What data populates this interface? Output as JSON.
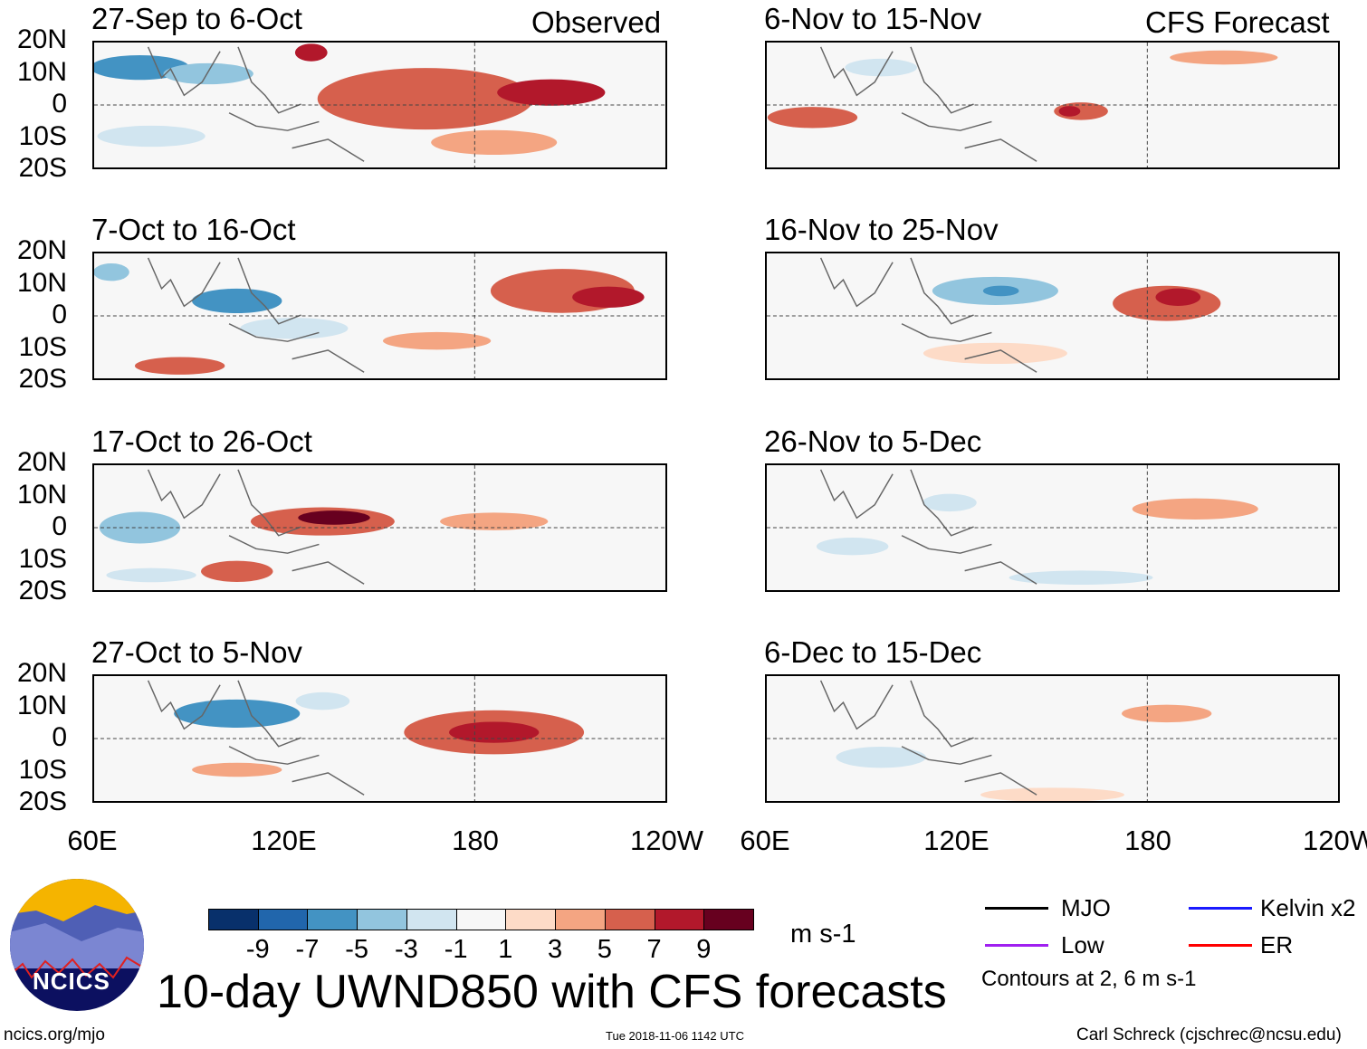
{
  "left_column_label": "Observed",
  "right_column_label": "CFS Forecast",
  "panels": [
    {
      "title": "27-Sep to 6-Oct",
      "source": "Observed"
    },
    {
      "title": "7-Oct to 16-Oct",
      "source": "Observed"
    },
    {
      "title": "17-Oct to 26-Oct",
      "source": "Observed"
    },
    {
      "title": "27-Oct to 5-Nov",
      "source": "Observed"
    },
    {
      "title": "6-Nov to 15-Nov",
      "source": "CFS Forecast"
    },
    {
      "title": "16-Nov to 25-Nov",
      "source": "CFS Forecast"
    },
    {
      "title": "26-Nov to 5-Dec",
      "source": "CFS Forecast"
    },
    {
      "title": "6-Dec to 15-Dec",
      "source": "CFS Forecast"
    }
  ],
  "lat_labels": [
    "20N",
    "10N",
    "0",
    "10S",
    "20S"
  ],
  "lon_labels": [
    "60E",
    "120E",
    "180",
    "120W"
  ],
  "colorbar": {
    "colors": [
      "#08306b",
      "#2166ac",
      "#4393c3",
      "#92c5de",
      "#d1e5f0",
      "#f7f7f7",
      "#fddbc7",
      "#f4a582",
      "#d6604d",
      "#b2182b",
      "#67001f"
    ],
    "labels": [
      "-9",
      "-7",
      "-5",
      "-3",
      "-1",
      "1",
      "3",
      "5",
      "7",
      "9"
    ],
    "units": "m s-1"
  },
  "main_title": "10-day UWND850 with CFS forecasts",
  "legend": {
    "items": [
      {
        "label": "MJO",
        "color": "#000000"
      },
      {
        "label": "Kelvin x2",
        "color": "#1a1aff"
      },
      {
        "label": "Low",
        "color": "#a020f0"
      },
      {
        "label": "ER",
        "color": "#ff0000"
      }
    ],
    "note": "Contours at 2, 6 m s-1"
  },
  "logo_text": "NCICS",
  "footer": {
    "url": "ncics.org/mjo",
    "timestamp": "Tue 2018-11-06 1142 UTC",
    "author": "Carl Schreck (cjschrec@ncsu.edu)"
  }
}
